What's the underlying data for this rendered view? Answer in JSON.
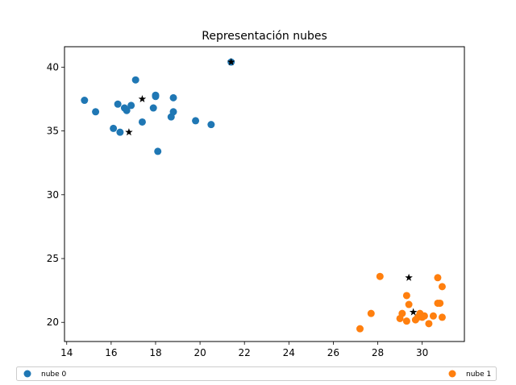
{
  "chart_data": {
    "type": "scatter",
    "title": "Representación nubes",
    "xlabel": "",
    "ylabel": "",
    "xlim": [
      13.9,
      31.9
    ],
    "ylim": [
      18.5,
      41.6
    ],
    "xticks": [
      14,
      16,
      18,
      20,
      22,
      24,
      26,
      28,
      30
    ],
    "yticks": [
      20,
      25,
      30,
      35,
      40
    ],
    "grid": false,
    "legend_position": "bottom",
    "series": [
      {
        "name": "nube 0",
        "color": "#1f77b4",
        "marker": "circle",
        "points": [
          [
            14.8,
            37.4
          ],
          [
            15.3,
            36.5
          ],
          [
            16.1,
            35.2
          ],
          [
            16.3,
            37.1
          ],
          [
            16.4,
            34.9
          ],
          [
            16.6,
            36.8
          ],
          [
            16.7,
            36.6
          ],
          [
            16.9,
            37.0
          ],
          [
            17.1,
            39.0
          ],
          [
            17.4,
            35.7
          ],
          [
            17.9,
            36.8
          ],
          [
            18.0,
            37.8
          ],
          [
            18.0,
            37.7
          ],
          [
            18.1,
            33.4
          ],
          [
            18.7,
            36.1
          ],
          [
            18.8,
            37.6
          ],
          [
            18.8,
            36.5
          ],
          [
            19.8,
            35.8
          ],
          [
            20.5,
            35.5
          ],
          [
            21.4,
            40.4
          ]
        ]
      },
      {
        "name": "nube 1",
        "color": "#ff7f0e",
        "marker": "circle",
        "points": [
          [
            27.2,
            19.5
          ],
          [
            27.7,
            20.7
          ],
          [
            28.1,
            23.6
          ],
          [
            29.0,
            20.3
          ],
          [
            29.1,
            20.7
          ],
          [
            29.3,
            20.1
          ],
          [
            29.3,
            22.1
          ],
          [
            29.4,
            21.4
          ],
          [
            29.7,
            20.2
          ],
          [
            29.8,
            20.4
          ],
          [
            29.9,
            20.7
          ],
          [
            30.0,
            20.4
          ],
          [
            30.1,
            20.5
          ],
          [
            30.3,
            19.9
          ],
          [
            30.5,
            20.5
          ],
          [
            30.7,
            23.5
          ],
          [
            30.7,
            21.5
          ],
          [
            30.8,
            21.5
          ],
          [
            30.9,
            22.8
          ],
          [
            30.9,
            20.4
          ]
        ]
      },
      {
        "name": "",
        "color": "#000000",
        "marker": "star",
        "points": [
          [
            17.4,
            37.5
          ],
          [
            16.8,
            34.9
          ],
          [
            21.4,
            40.4
          ],
          [
            29.4,
            23.5
          ],
          [
            29.6,
            20.8
          ]
        ]
      }
    ]
  }
}
